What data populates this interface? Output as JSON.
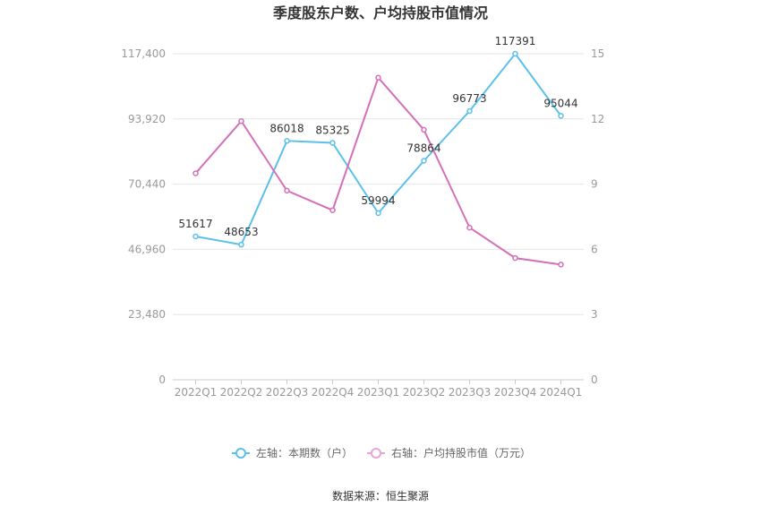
{
  "chart_data": {
    "type": "line",
    "title": "季度股东户数、户均持股市值情况",
    "categories": [
      "2022Q1",
      "2022Q2",
      "2022Q3",
      "2022Q4",
      "2023Q1",
      "2023Q2",
      "2023Q3",
      "2023Q4",
      "2024Q1"
    ],
    "left_axis": {
      "range": [
        0,
        117400
      ],
      "ticks": [
        "0",
        "23,480",
        "46,960",
        "70,440",
        "93,920",
        "117,400"
      ],
      "tick_values": [
        0,
        23480,
        46960,
        70440,
        93920,
        117400
      ]
    },
    "right_axis": {
      "range": [
        0,
        15
      ],
      "ticks": [
        "0",
        "3",
        "6",
        "9",
        "12",
        "15"
      ],
      "tick_values": [
        0,
        3,
        6,
        9,
        12,
        15
      ]
    },
    "series": [
      {
        "name": "左轴：本期数（户）",
        "axis": "left",
        "color": "#5bc0eb",
        "values": [
          51617,
          48653,
          86018,
          85325,
          59994,
          78864,
          96773,
          117391,
          95044
        ],
        "labels": [
          "51617",
          "48653",
          "86018",
          "85325",
          "59994",
          "78864",
          "96773",
          "117391",
          "95044"
        ]
      },
      {
        "name": "右轴：户均持股市值（万元）",
        "axis": "right",
        "color": "#d46fb8",
        "values": [
          9.5,
          11.9,
          8.7,
          7.8,
          13.9,
          11.5,
          7.0,
          5.6,
          5.3
        ]
      }
    ],
    "grid": true,
    "legend_position": "bottom"
  },
  "source": "数据来源：恒生聚源"
}
